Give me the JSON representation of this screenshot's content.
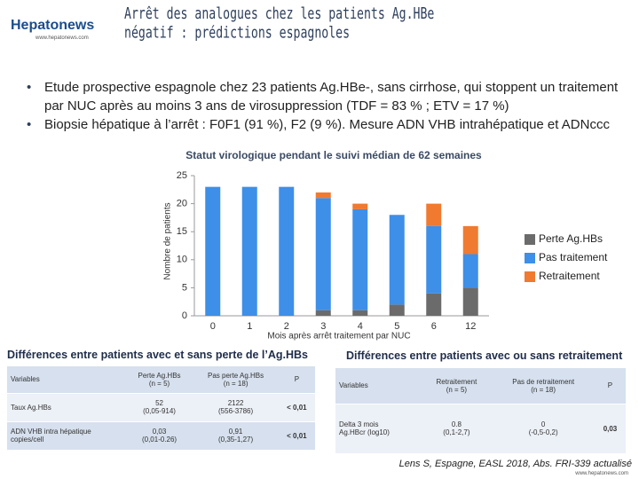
{
  "header": {
    "logo": "Hepatonews",
    "logo_url": "www.hepatonews.com",
    "title": "Arrêt des analogues chez les patients Ag.HBe négatif : prédictions espagnoles"
  },
  "bullets": [
    "Etude prospective espagnole chez 23 patients Ag.HBe-, sans cirrhose, qui stoppent un traitement par NUC après au moins 3 ans de virosuppression (TDF = 83 % ; ETV = 17 %)",
    "Biopsie hépatique à l’arrêt : F0F1 (91 %), F2 (9 %). Mesure ADN VHB intrahépatique et ADNccc"
  ],
  "chart_data": {
    "type": "stacked_bar",
    "title": "Statut virologique pendant le suivi médian de 62 semaines",
    "x_label": "Mois après arrêt traitement par NUC",
    "y_label": "Nombre de patients",
    "categories": [
      "0",
      "1",
      "2",
      "3",
      "4",
      "5",
      "6",
      "12"
    ],
    "series": [
      {
        "name": "Perte Ag.HBs",
        "color": "#6b6b6b",
        "values": [
          0,
          0,
          0,
          1,
          1,
          2,
          4,
          5
        ]
      },
      {
        "name": "Pas traitement",
        "color": "#3d8fe8",
        "values": [
          23,
          23,
          23,
          20,
          18,
          16,
          12,
          6
        ]
      },
      {
        "name": "Retraitement",
        "color": "#f07a30",
        "values": [
          0,
          0,
          0,
          1,
          1,
          0,
          4,
          5
        ]
      }
    ],
    "ylim": [
      0,
      25
    ],
    "yticks": [
      0,
      5,
      10,
      15,
      20,
      25
    ],
    "legend": "right"
  },
  "tables": [
    {
      "heading": "Différences entre patients avec et sans perte de l’Ag.HBs",
      "columns": [
        "Variables",
        "Perte Ag.HBs\n(n = 5)",
        "Pas perte Ag.HBs\n(n = 18)",
        "P"
      ],
      "rows": [
        [
          "Taux Ag.HBs",
          "52\n(0,05-914)",
          "2122\n(556-3786)",
          "< 0,01"
        ],
        [
          "ADN VHB intra hépatique\ncopies/cell",
          "0,03\n(0,01-0.26)",
          "0,91\n(0,35-1,27)",
          "< 0,01"
        ]
      ]
    },
    {
      "heading": "Différences entre patients avec ou sans retraitement",
      "columns": [
        "Variables",
        "Retraitement\n(n = 5)",
        "Pas de retraitement\n(n = 18)",
        "P"
      ],
      "rows": [
        [
          "Delta 3 mois\nAg.HBcr (log10)",
          "0.8\n(0,1-2,7)",
          "0\n(-0,5-0,2)",
          "0,03"
        ]
      ]
    }
  ],
  "footer": {
    "citation": "Lens S, Espagne, EASL 2018, Abs. FRI-339 actualisé",
    "url": "www.hepatonews.com"
  }
}
